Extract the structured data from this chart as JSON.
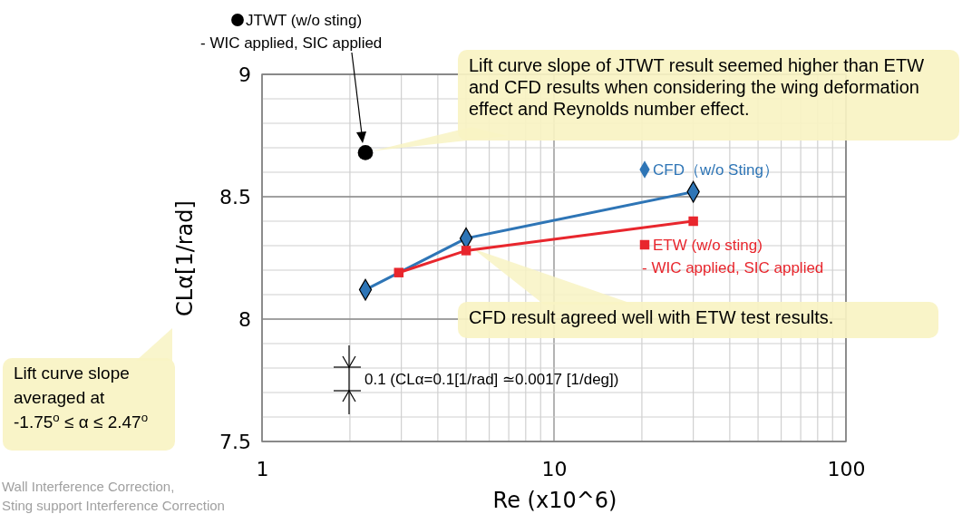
{
  "chart_data": {
    "type": "line",
    "xlabel": "Re (x10^6)",
    "ylabel": "CLα[1/rad]",
    "log": "x",
    "grid": true,
    "legend": "top",
    "line_style": "solid",
    "xlim": [
      1,
      100
    ],
    "xticks": [
      1,
      10,
      100
    ],
    "ylim": [
      7.5,
      9
    ],
    "yticks": [
      7.5,
      8,
      8.5,
      9
    ],
    "series": [
      {
        "name": "JTWT (w/o sting)",
        "type": "scatter",
        "marker": "circle",
        "color": "#000000",
        "x": [
          2.26
        ],
        "values": [
          8.68
        ]
      },
      {
        "name": "CFD（w/o Sting）",
        "marker": "diamond",
        "color": "#2e75b6",
        "x": [
          2.26,
          5,
          30
        ],
        "values": [
          8.12,
          8.33,
          8.52
        ]
      },
      {
        "name": "ETW (w/o sting)",
        "marker": "square",
        "color": "#e8262d",
        "x": [
          2.94,
          5,
          30
        ],
        "values": [
          8.19,
          8.28,
          8.4
        ]
      }
    ],
    "annotations": [
      {
        "text": "Lift curve slope of JTWT result seemed higher than ETW and CFD results when considering the wing deformation effect and Reynolds number effect.",
        "x": 2.26,
        "y": 8.68
      },
      {
        "text": "CFD result agreed well with ETW test results.",
        "x": 5,
        "y": 8.28
      },
      "Lift curve slope averaged at -1.75$^{o}$ ≤ α ≤ 2.47$^{o}$",
      "0.1 (CLα=0.1[1/rad] ≃0.0017 [1/deg])",
      "- WIC applied, SIC applied",
      "- WIC applied, SIC applied",
      "Wall Interference Correction,",
      "Sting support Interference Correction"
    ]
  }
}
